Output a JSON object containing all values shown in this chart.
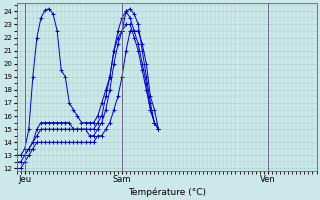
{
  "background_color": "#cce8e8",
  "grid_color": "#aacccc",
  "line_color": "#0000cc",
  "marker": "+",
  "xlabel": "Température (°C)",
  "ylim": [
    11.8,
    24.6
  ],
  "yticks": [
    12,
    13,
    14,
    15,
    16,
    17,
    18,
    19,
    20,
    21,
    22,
    23,
    24
  ],
  "xtick_labels": [
    "Jeu",
    "Sam",
    "Ven"
  ],
  "xtick_positions": [
    2,
    26,
    62
  ],
  "xlim": [
    0,
    74
  ],
  "series": [
    [
      13.0,
      13.0,
      13.5,
      15.0,
      19.0,
      22.0,
      23.5,
      24.1,
      24.2,
      23.8,
      22.5,
      19.5,
      19.0,
      17.0,
      16.5,
      16.0,
      15.5,
      15.5,
      15.5,
      15.5,
      16.0,
      17.0,
      18.0,
      19.0,
      21.0,
      22.0,
      22.5,
      24.0,
      24.2,
      23.8,
      23.0,
      21.0,
      19.0,
      17.0,
      15.5,
      15.0
    ],
    [
      13.0,
      13.0,
      13.0,
      13.5,
      14.0,
      15.0,
      15.5,
      15.5,
      15.5,
      15.5,
      15.5,
      15.5,
      15.5,
      15.5,
      15.0,
      15.0,
      15.0,
      15.0,
      15.0,
      15.0,
      15.5,
      16.0,
      17.5,
      19.0,
      21.0,
      22.5,
      23.5,
      24.0,
      23.5,
      22.5,
      21.5,
      20.0,
      18.5,
      16.5,
      15.5,
      15.0
    ],
    [
      12.5,
      12.5,
      13.0,
      13.5,
      14.0,
      14.5,
      15.0,
      15.0,
      15.0,
      15.0,
      15.0,
      15.0,
      15.0,
      15.0,
      15.0,
      15.0,
      15.0,
      15.0,
      14.5,
      14.5,
      15.0,
      15.5,
      16.5,
      18.0,
      20.0,
      21.5,
      22.5,
      23.0,
      23.0,
      22.0,
      21.0,
      19.5,
      18.0,
      16.5,
      15.5,
      15.0
    ],
    [
      12.0,
      12.0,
      12.5,
      13.0,
      13.5,
      14.0,
      14.0,
      14.0,
      14.0,
      14.0,
      14.0,
      14.0,
      14.0,
      14.0,
      14.0,
      14.0,
      14.0,
      14.0,
      14.0,
      14.0,
      14.5,
      14.5,
      15.0,
      15.5,
      16.5,
      17.5,
      19.0,
      21.0,
      22.5,
      22.5,
      22.5,
      21.5,
      20.0,
      17.5,
      16.5,
      15.0
    ]
  ],
  "vline_positions": [
    2,
    26,
    62
  ],
  "vline_color": "#666688",
  "spine_color": "#666688"
}
